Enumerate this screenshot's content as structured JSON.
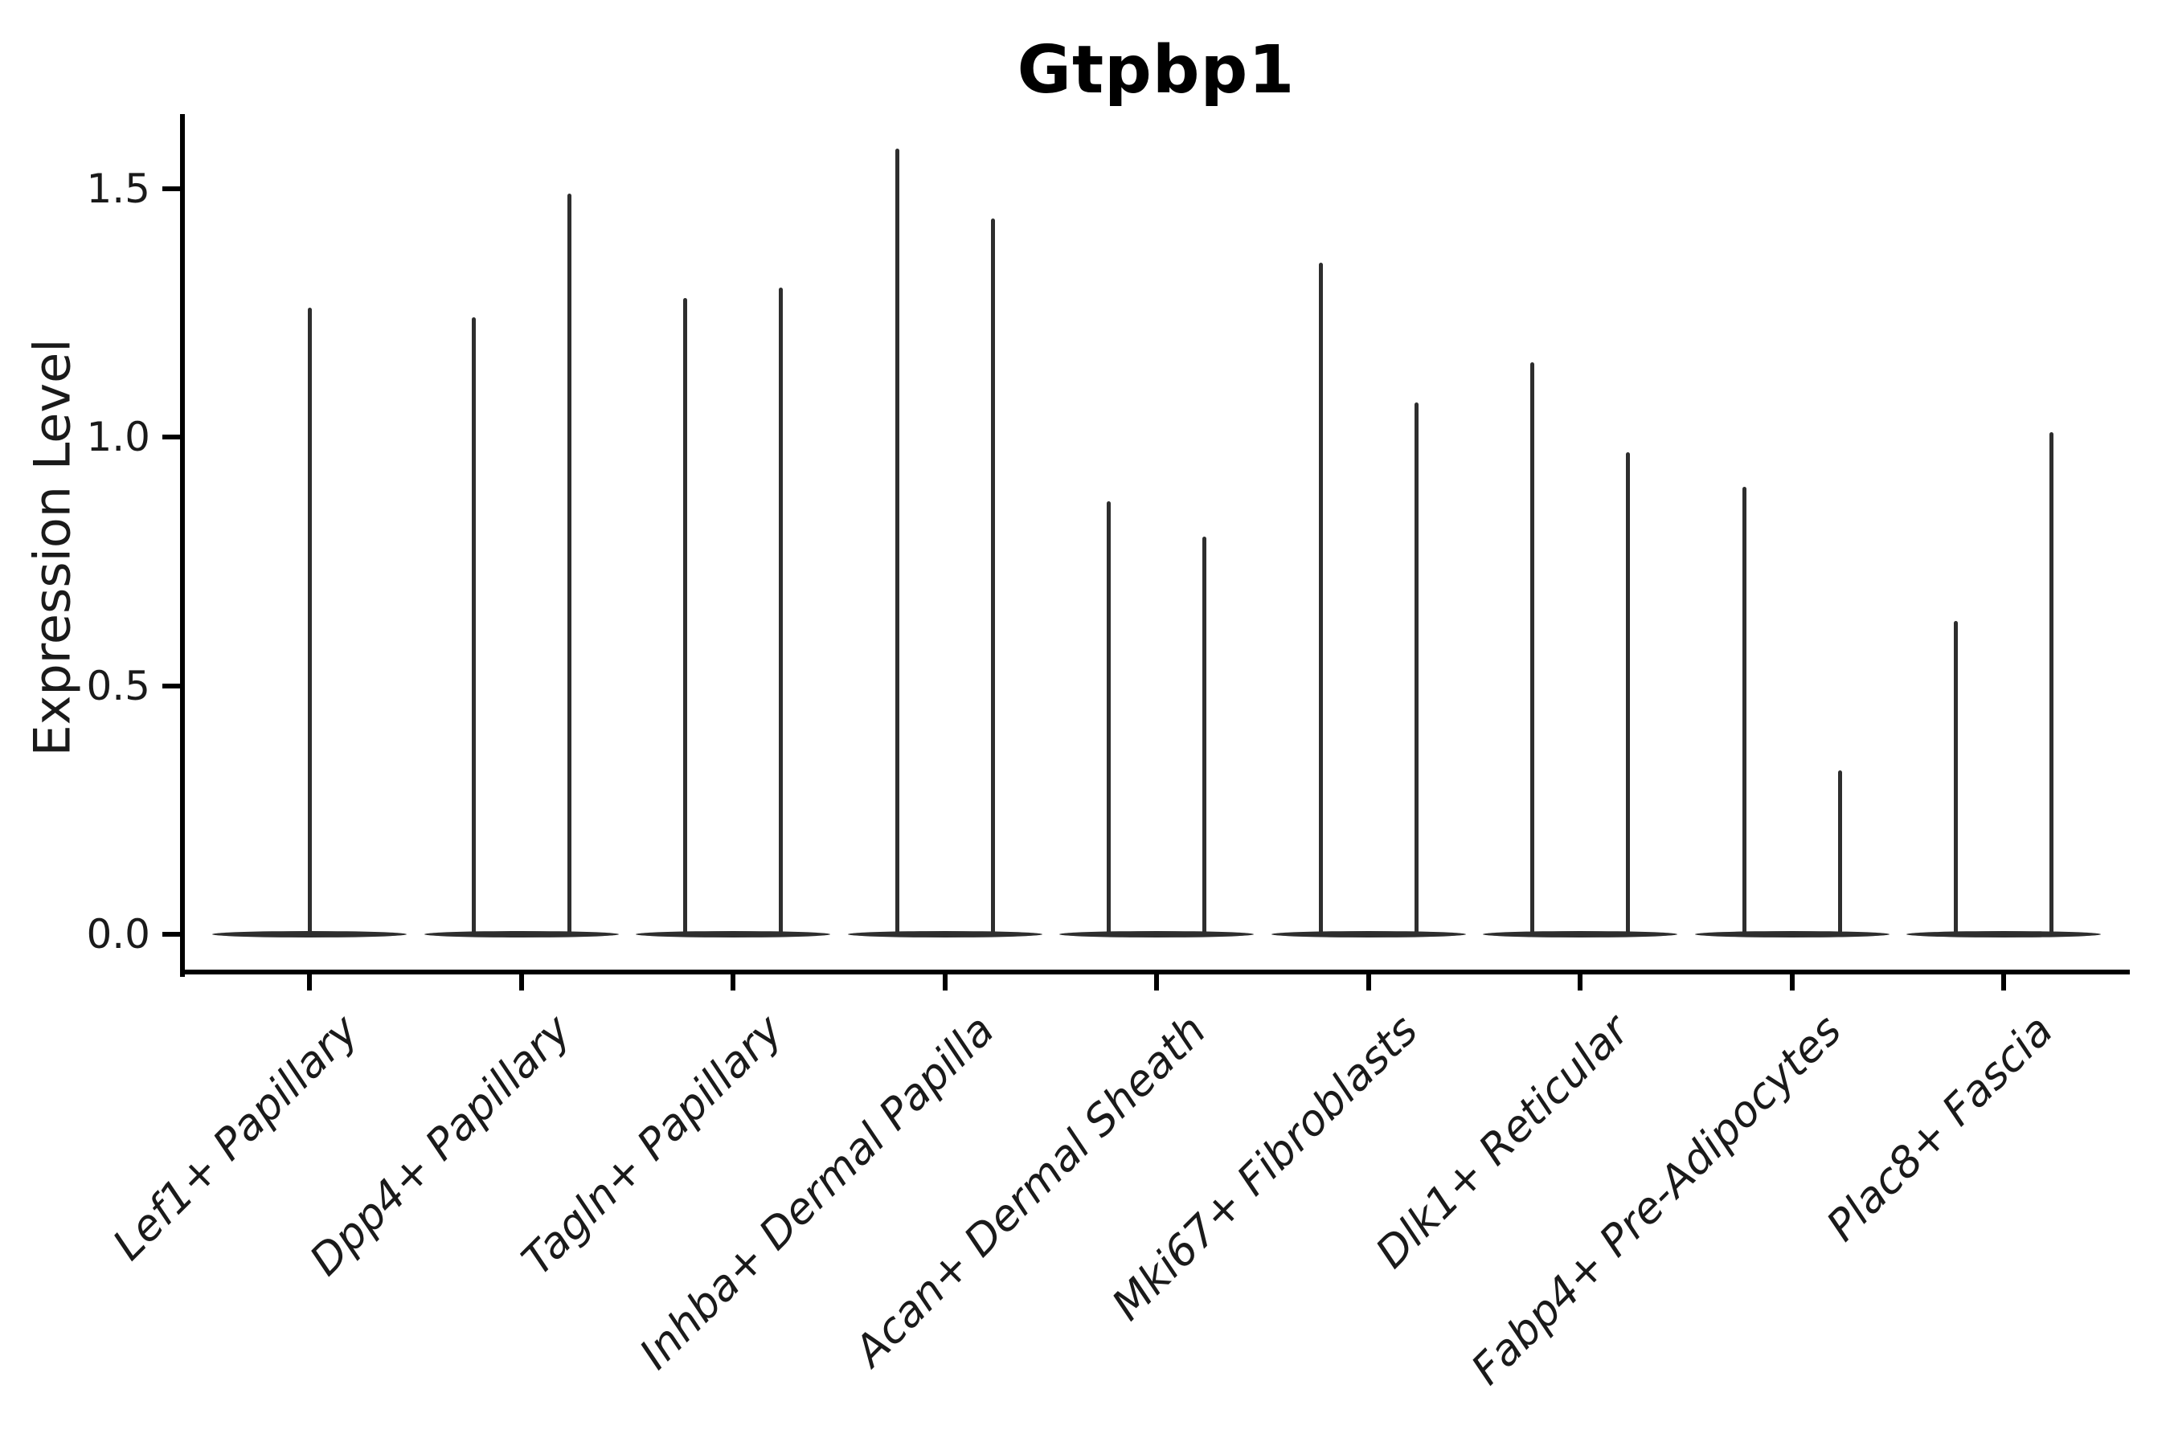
{
  "chart_data": {
    "type": "violin",
    "title": "Gtpbp1",
    "ylabel": "Expression Level",
    "xlabel": "",
    "yticks": [
      0.0,
      0.5,
      1.0,
      1.5
    ],
    "ylim": [
      -0.08,
      1.65
    ],
    "grid": false,
    "legend": "none",
    "description": "Single-cell expression violin plot; most cells at 0 so each violin renders as a wide flat base at 0 with one thin spike per violin reaching the maximum expression value. Every category holds two violins except the first, which holds one centered violin.",
    "violin_color": "#2e2e2e",
    "axis_color": "#000000",
    "text_color": "#1a1a1a",
    "categories": [
      {
        "label": "Lef1+ Papillary",
        "spike_maxima": [
          1.26
        ]
      },
      {
        "label": "Dpp4+ Papillary",
        "spike_maxima": [
          1.24,
          1.49
        ]
      },
      {
        "label": "Tagln+ Papillary",
        "spike_maxima": [
          1.28,
          1.3
        ]
      },
      {
        "label": "Inhba+ Dermal Papilla",
        "spike_maxima": [
          1.58,
          1.44
        ]
      },
      {
        "label": "Acan+ Dermal Sheath",
        "spike_maxima": [
          0.87,
          0.8
        ]
      },
      {
        "label": "Mki67+ Fibroblasts",
        "spike_maxima": [
          1.35,
          1.07
        ]
      },
      {
        "label": "Dlk1+ Reticular",
        "spike_maxima": [
          1.15,
          0.97
        ]
      },
      {
        "label": "Fabp4+ Pre-Adipocytes",
        "spike_maxima": [
          0.9,
          0.33
        ]
      },
      {
        "label": "Plac8+ Fascia",
        "spike_maxima": [
          0.63,
          1.01
        ]
      }
    ]
  }
}
